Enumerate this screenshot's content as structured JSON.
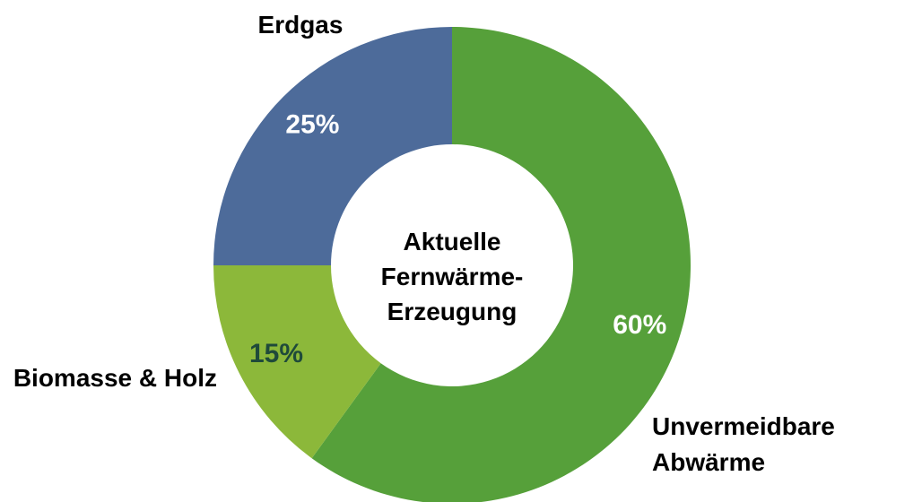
{
  "chart_data": {
    "type": "donut",
    "center_label": "Aktuelle Fernwärme-Erzeugung",
    "categories": [
      "Unvermeidbare Abwärme",
      "Biomasse & Holz",
      "Erdgas"
    ],
    "values": [
      60,
      15,
      25
    ],
    "value_labels": [
      "60%",
      "15%",
      "25%"
    ],
    "colors": [
      "#56a03a",
      "#8cb83a",
      "#4d6b9a"
    ],
    "value_label_colors": [
      "#ffffff",
      "#1f4a3a",
      "#ffffff"
    ]
  }
}
